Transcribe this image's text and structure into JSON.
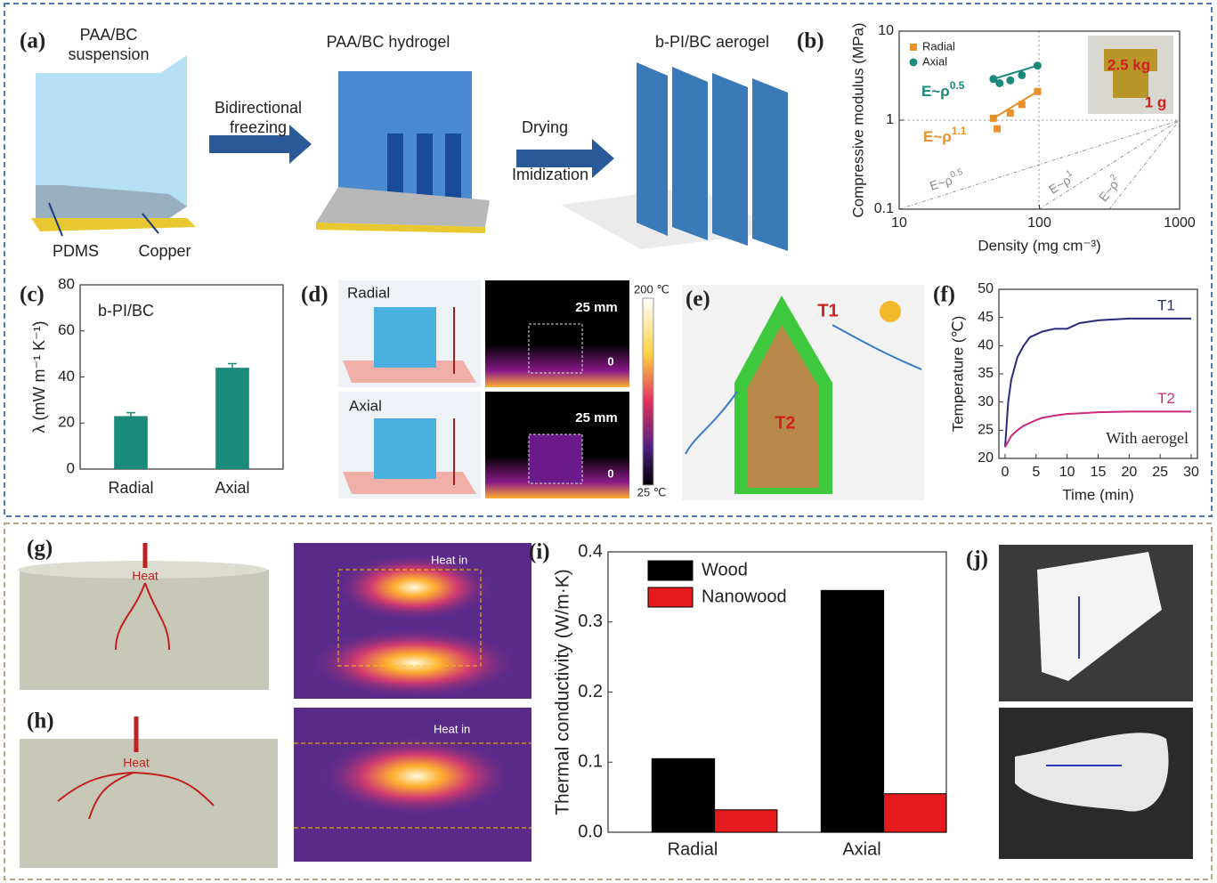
{
  "chart_data": [
    {
      "type": "scatter",
      "panel": "(b)",
      "xlabel": "Density (mg cm⁻³)",
      "ylabel": "Compressive modulus (MPa)",
      "xlog": true,
      "ylog": true,
      "xlim": [
        10,
        1000
      ],
      "ylim": [
        0.1,
        10
      ],
      "xticks": [
        10,
        100,
        1000
      ],
      "yticks": [
        0.1,
        1,
        10
      ],
      "legend": "upper left",
      "series": [
        {
          "name": "Radial",
          "color": "#e8902a",
          "marker": "square",
          "x": [
            47,
            50,
            62,
            75,
            97
          ],
          "values": [
            1.05,
            0.8,
            1.2,
            1.5,
            2.1
          ]
        },
        {
          "name": "Axial",
          "color": "#1a8a7a",
          "marker": "circle",
          "x": [
            47,
            52,
            62,
            75,
            97
          ],
          "values": [
            2.9,
            2.6,
            2.8,
            3.2,
            4.1
          ]
        }
      ],
      "annotations": [
        {
          "text": "E~ρ",
          "sup": "0.5"
        },
        {
          "text": "E~ρ",
          "sup": "1.1"
        },
        {
          "text": "E~ρ",
          "sup": "0.5"
        },
        {
          "text": "E~ρ",
          "sup": "1"
        },
        {
          "text": "E~ρ",
          "sup": "2"
        }
      ],
      "photo_labels": [
        "2.5 kg",
        "1 g"
      ]
    },
    {
      "type": "bar",
      "panel": "(c)",
      "ylabel": "λ (mW m⁻¹ K⁻¹)",
      "annotation": "b-PI/BC",
      "color": "#1a8a7a",
      "categories": [
        "Radial",
        "Axial"
      ],
      "values": [
        23,
        44
      ],
      "errors": [
        1.5,
        1.8
      ],
      "ylim": [
        0,
        80
      ],
      "yticks": [
        0,
        20,
        40,
        60,
        80
      ]
    },
    {
      "type": "line",
      "panel": "(f)",
      "xlabel": "Time (min)",
      "ylabel": "Temperature (℃)",
      "annotation": "With aerogel",
      "x": [
        0,
        0.5,
        1,
        2,
        3,
        4,
        5,
        6,
        8,
        10,
        12,
        15,
        20,
        25,
        30
      ],
      "series": [
        {
          "name": "T1",
          "color": "#2a2a7a",
          "values": [
            22,
            30,
            34,
            38,
            40,
            41.5,
            42,
            42.5,
            43,
            43,
            44,
            44.5,
            44.8,
            44.8,
            44.8
          ]
        },
        {
          "name": "T2",
          "color": "#cc2a7a",
          "values": [
            22,
            23,
            24,
            25,
            25.8,
            26.3,
            26.8,
            27.2,
            27.6,
            27.9,
            28,
            28.2,
            28.3,
            28.3,
            28.3
          ]
        }
      ],
      "xlim": [
        -1,
        31
      ],
      "xticks": [
        0,
        5,
        10,
        15,
        20,
        25,
        30
      ],
      "ylim": [
        20,
        50
      ],
      "yticks": [
        20,
        25,
        30,
        35,
        40,
        45,
        50
      ]
    },
    {
      "type": "grouped_bar",
      "panel": "(i)",
      "ylabel": "Thermal conductivity (W/m·K)",
      "legend": "upper left",
      "categories": [
        "Radial",
        "Axial"
      ],
      "series": [
        {
          "name": "Wood",
          "color": "#000000",
          "values": [
            0.105,
            0.345
          ]
        },
        {
          "name": "Nanowood",
          "color": "#e41a1c",
          "values": [
            0.032,
            0.055
          ]
        }
      ],
      "ylim": [
        0,
        0.4
      ],
      "yticks": [
        {
          "value": 0,
          "label": "0.0"
        },
        0.1,
        0.2,
        0.3,
        0.4
      ]
    }
  ],
  "panels": {
    "a": {
      "label": "(a)",
      "suspension": [
        "PAA/BC",
        "suspension"
      ],
      "hydrogel": "PAA/BC hydrogel",
      "aerogel": "b-PI/BC aerogel",
      "freezing": [
        "Bidirectional",
        "freezing"
      ],
      "drying": "Drying",
      "imidization": "Imidization",
      "pdms": "PDMS",
      "copper": "Copper"
    },
    "d": {
      "label": "(d)",
      "radial": "Radial",
      "axial": "Axial",
      "scale": [
        "25 mm",
        "0",
        "25 mm",
        "0"
      ],
      "colorbar": [
        "200 ℃",
        "25 ℃"
      ]
    },
    "e": {
      "label": "(e)",
      "t1": "T1",
      "t2": "T2"
    },
    "g": {
      "label": "(g)",
      "heat": "Heat",
      "heat_in": "Heat in"
    },
    "h": {
      "label": "(h)",
      "heat": "Heat",
      "heat_in": "Heat in"
    },
    "j": {
      "label": "(j)"
    }
  }
}
